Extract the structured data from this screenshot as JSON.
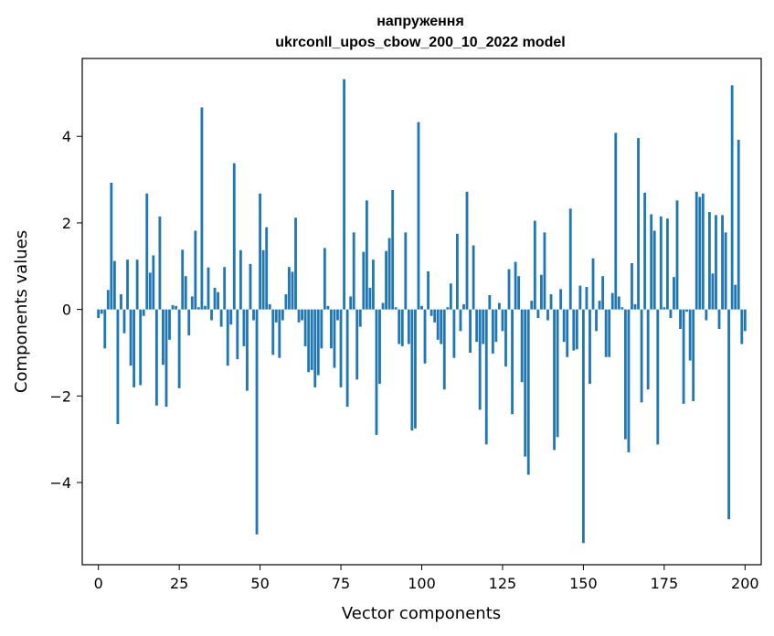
{
  "chart_data": {
    "type": "bar",
    "title": "напруження",
    "subtitle": "ukrconll_upos_cbow_200_10_2022 model",
    "xlabel": "Vector components",
    "ylabel": "Components values",
    "xlim": [
      -5,
      205
    ],
    "ylim": [
      -5.9,
      5.8
    ],
    "xticks": [
      0,
      25,
      50,
      75,
      100,
      125,
      150,
      175,
      200
    ],
    "yticks": [
      -4,
      -2,
      0,
      2,
      4
    ],
    "ytick_labels": [
      "−4",
      "−2",
      "0",
      "2",
      "4"
    ],
    "grid": false,
    "legend": "none",
    "bar_color": "#1f77b4",
    "values": [
      -0.2,
      -0.1,
      -0.9,
      0.45,
      2.93,
      1.12,
      -2.65,
      0.35,
      -0.55,
      1.15,
      -1.3,
      -1.8,
      1.15,
      -1.75,
      -0.15,
      2.68,
      0.85,
      1.25,
      -2.22,
      2.15,
      -1.28,
      -2.25,
      -0.7,
      0.1,
      0.08,
      -1.82,
      1.38,
      0.77,
      -0.6,
      0.3,
      1.82,
      0.05,
      4.67,
      0.08,
      0.97,
      -0.25,
      0.5,
      0.4,
      -0.4,
      0.98,
      -1.3,
      -0.35,
      3.38,
      -1.15,
      1.37,
      -0.85,
      -1.88,
      1.05,
      -0.25,
      -5.2,
      2.68,
      1.37,
      1.9,
      0.12,
      -1.05,
      -0.3,
      -1.12,
      -0.25,
      0.35,
      0.98,
      0.87,
      2.12,
      -0.3,
      -0.25,
      -0.85,
      -1.45,
      -1.4,
      -1.8,
      -1.52,
      -0.9,
      1.42,
      0.08,
      -0.9,
      -1.35,
      -0.25,
      -1.8,
      5.32,
      -2.25,
      0.3,
      1.78,
      -1.62,
      -0.4,
      1.33,
      2.52,
      0.5,
      1.15,
      -2.9,
      -1.72,
      0.15,
      1.35,
      1.65,
      2.76,
      0.05,
      -0.8,
      -0.85,
      1.78,
      -0.8,
      -2.8,
      -2.75,
      4.33,
      0.08,
      -1.25,
      0.88,
      -0.15,
      -0.3,
      -0.7,
      -0.8,
      -1.85,
      0.05,
      0.6,
      -1.12,
      1.75,
      -0.5,
      0.12,
      2.72,
      -1.0,
      1.48,
      -0.75,
      -2.32,
      -0.8,
      -3.12,
      0.33,
      -1.02,
      -0.75,
      0.15,
      -0.5,
      -1.32,
      0.93,
      -2.42,
      1.1,
      0.77,
      -1.68,
      -3.4,
      -3.82,
      0.2,
      2.05,
      -0.2,
      0.8,
      1.78,
      -0.25,
      0.35,
      -3.25,
      -2.95,
      0.47,
      -0.75,
      -1.1,
      2.33,
      -0.95,
      -0.92,
      0.55,
      -5.4,
      0.52,
      -1.72,
      1.18,
      -0.5,
      0.2,
      0.77,
      -1.1,
      -1.1,
      0.38,
      4.08,
      0.3,
      0.05,
      -3.0,
      -3.3,
      1.07,
      0.12,
      3.96,
      -2.15,
      2.7,
      -1.85,
      2.2,
      1.82,
      -3.12,
      2.15,
      0.05,
      2.1,
      -0.2,
      0.75,
      2.52,
      -0.45,
      -2.18,
      -0.05,
      -1.18,
      -2.12,
      2.72,
      2.6,
      2.68,
      -0.25,
      2.25,
      0.83,
      2.18,
      -0.45,
      2.18,
      1.78,
      -4.85,
      5.18,
      0.57,
      3.92,
      -0.8,
      -0.5
    ]
  }
}
